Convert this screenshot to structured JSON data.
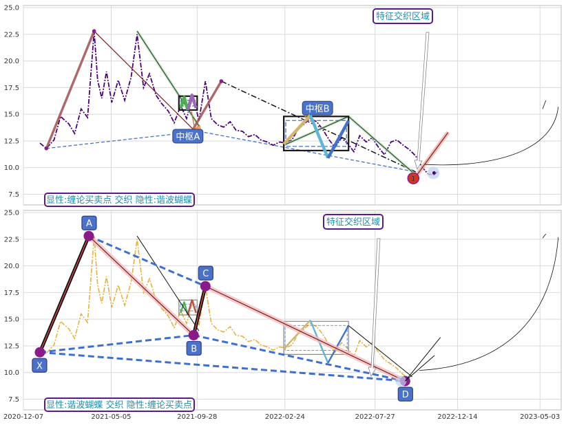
{
  "chart_data": [
    {
      "type": "line",
      "panel": "top",
      "xlim": [
        "2020-12-07",
        "2023-06-08"
      ],
      "ylim": [
        6.5,
        25.2
      ],
      "yticks": [
        "7.5",
        "10.0",
        "12.5",
        "15.0",
        "17.5",
        "20.0",
        "22.5",
        "25.0"
      ],
      "grid": true,
      "price": {
        "color": "#4b0082",
        "x": [
          "2021-01-04",
          "2021-01-15",
          "2021-01-28",
          "2021-02-08",
          "2021-02-22",
          "2021-03-04",
          "2021-03-15",
          "2021-03-26",
          "2021-04-06",
          "2021-04-12",
          "2021-04-19",
          "2021-04-27",
          "2021-05-06",
          "2021-05-17",
          "2021-05-28",
          "2021-06-08",
          "2021-06-18",
          "2021-06-29",
          "2021-07-09",
          "2021-07-20",
          "2021-07-30",
          "2021-08-10",
          "2021-08-20",
          "2021-08-31",
          "2021-09-10",
          "2021-09-21",
          "2021-10-01",
          "2021-10-12",
          "2021-10-22",
          "2021-11-02",
          "2021-11-12",
          "2021-11-23",
          "2021-12-03",
          "2021-12-14",
          "2021-12-24",
          "2022-01-04",
          "2022-01-14",
          "2022-01-25",
          "2022-02-04",
          "2022-02-15",
          "2022-02-25",
          "2022-03-08",
          "2022-03-18",
          "2022-03-29",
          "2022-04-08",
          "2022-04-19",
          "2022-04-29",
          "2022-05-10",
          "2022-05-20",
          "2022-05-31",
          "2022-06-10",
          "2022-06-21",
          "2022-07-01",
          "2022-07-12",
          "2022-07-22",
          "2022-08-02",
          "2022-08-12",
          "2022-08-23",
          "2022-09-02",
          "2022-09-13",
          "2022-09-23",
          "2022-10-04",
          "2022-10-14",
          "2022-10-25",
          "2022-11-04",
          "2022-11-10"
        ],
        "y": [
          12.3,
          11.8,
          12.6,
          14.8,
          14.1,
          13.2,
          15.5,
          14.7,
          22.8,
          18.2,
          16.5,
          19.0,
          16.1,
          18.2,
          16.3,
          18.5,
          22.5,
          17.5,
          18.8,
          16.8,
          16.0,
          15.3,
          14.2,
          15.8,
          14.6,
          16.8,
          14.4,
          18.1,
          14.6,
          14.0,
          13.8,
          14.3,
          13.5,
          13.4,
          12.9,
          13.1,
          12.6,
          12.4,
          12.1,
          12.4,
          12.3,
          12.6,
          13.6,
          14.1,
          14.6,
          14.3,
          13.6,
          12.6,
          11.9,
          12.8,
          12.3,
          11.5,
          13.0,
          12.4,
          12.8,
          11.9,
          11.2,
          12.4,
          12.6,
          12.1,
          11.7,
          11.1,
          10.1,
          9.4,
          9.3,
          9.6
        ]
      },
      "bi": {
        "x": [
          "2021-01-15",
          "2021-04-06",
          "2021-09-21",
          "2021-11-08",
          "2022-09-30",
          "2022-10-20",
          "2022-11-10"
        ],
        "y": [
          11.8,
          22.8,
          13.6,
          18.1,
          9.3,
          9.3,
          9.6
        ]
      },
      "segment_lines": [
        {
          "x": [
            "2021-04-06",
            "2021-09-21"
          ],
          "y": [
            22.8,
            13.6
          ]
        },
        {
          "x": [
            "2021-06-18",
            "2021-10-01"
          ],
          "y": [
            22.8,
            13.9
          ]
        },
        {
          "x": [
            "2021-11-08",
            "2022-10-04"
          ],
          "y": [
            18.1,
            9.6
          ]
        },
        {
          "x": [
            "2022-02-22",
            "2022-06-12"
          ],
          "y": [
            12.1,
            14.8
          ]
        },
        {
          "x": [
            "2022-06-12",
            "2022-09-28"
          ],
          "y": [
            14.8,
            9.6
          ]
        }
      ],
      "trend_lines": [
        {
          "x": [
            "2021-01-15",
            "2021-10-01"
          ],
          "y": [
            11.8,
            13.4
          ]
        },
        {
          "x": [
            "2021-10-01",
            "2022-10-04"
          ],
          "y": [
            13.4,
            9.6
          ]
        }
      ],
      "zhongshu": [
        {
          "label": "中枢A",
          "x0": "2021-08-28",
          "x1": "2021-09-28",
          "y0": 15.4,
          "y1": 16.7
        },
        {
          "label": "中枢B",
          "x0": "2022-02-22",
          "x1": "2022-06-12",
          "y0": 11.6,
          "y1": 14.8
        }
      ],
      "zigzags": [
        {
          "x": [
            "2021-08-31",
            "2021-09-06",
            "2021-09-12"
          ],
          "y": [
            15.6,
            16.6,
            15.4
          ],
          "color": "#4caf50"
        },
        {
          "x": [
            "2021-09-12",
            "2021-09-19",
            "2021-09-26"
          ],
          "y": [
            15.4,
            16.8,
            15.6
          ],
          "color": "#9c6bb3"
        },
        {
          "x": [
            "2022-02-22",
            "2022-04-08"
          ],
          "y": [
            12.2,
            14.9
          ],
          "color": "#d2b46e"
        },
        {
          "x": [
            "2022-04-08",
            "2022-05-08"
          ],
          "y": [
            14.9,
            10.9
          ],
          "color": "#5fb6d9"
        },
        {
          "x": [
            "2022-05-08",
            "2022-06-12"
          ],
          "y": [
            10.9,
            14.4
          ],
          "color": "#4472c4"
        }
      ],
      "signal_label": "1",
      "texts": {
        "feature_region": "特征交织区域",
        "legend_box": "显性:缠论买卖点 交织 隐性:谐波蝴蝶"
      }
    },
    {
      "type": "line",
      "panel": "bottom",
      "xlim": [
        "2020-12-07",
        "2023-06-08"
      ],
      "ylim": [
        6.5,
        25.2
      ],
      "xticks": [
        "2020-12-07",
        "2021-05-05",
        "2021-09-28",
        "2022-02-24",
        "2022-07-27",
        "2022-12-14",
        "2023-05-03"
      ],
      "yticks": [
        "7.5",
        "10.0",
        "12.5",
        "15.0",
        "17.5",
        "20.0",
        "22.5",
        "25.0"
      ],
      "grid": true,
      "price": {
        "color": "#e8b23a",
        "x": [
          "2021-01-04",
          "2021-01-15",
          "2021-01-28",
          "2021-02-08",
          "2021-02-22",
          "2021-03-04",
          "2021-03-15",
          "2021-03-26",
          "2021-04-06",
          "2021-04-12",
          "2021-04-19",
          "2021-04-27",
          "2021-05-06",
          "2021-05-17",
          "2021-05-28",
          "2021-06-08",
          "2021-06-18",
          "2021-06-29",
          "2021-07-09",
          "2021-07-20",
          "2021-07-30",
          "2021-08-10",
          "2021-08-20",
          "2021-08-31",
          "2021-09-10",
          "2021-09-21",
          "2021-10-01",
          "2021-10-12",
          "2021-10-22",
          "2021-11-02",
          "2021-11-12",
          "2021-11-23",
          "2021-12-03",
          "2021-12-14",
          "2021-12-24",
          "2022-01-04",
          "2022-01-14",
          "2022-01-25",
          "2022-02-04",
          "2022-02-15",
          "2022-02-25",
          "2022-03-08",
          "2022-03-18",
          "2022-03-29",
          "2022-04-08",
          "2022-04-19",
          "2022-04-29",
          "2022-05-10",
          "2022-05-20",
          "2022-05-31",
          "2022-06-10",
          "2022-06-21",
          "2022-07-01",
          "2022-07-12",
          "2022-07-22",
          "2022-08-02",
          "2022-08-12",
          "2022-08-23",
          "2022-09-02",
          "2022-09-13",
          "2022-09-23"
        ],
        "y": [
          12.3,
          11.8,
          12.6,
          14.8,
          14.1,
          13.2,
          15.5,
          14.7,
          22.8,
          18.2,
          16.5,
          19.0,
          16.1,
          18.2,
          16.3,
          18.5,
          22.5,
          17.5,
          18.8,
          16.8,
          16.0,
          15.3,
          14.2,
          15.8,
          14.6,
          16.8,
          14.4,
          18.1,
          14.6,
          14.0,
          13.8,
          14.3,
          13.5,
          13.4,
          12.9,
          13.1,
          12.6,
          12.4,
          12.1,
          12.4,
          12.3,
          12.6,
          13.6,
          14.1,
          14.6,
          14.3,
          13.6,
          12.6,
          11.9,
          12.8,
          12.3,
          11.5,
          13.0,
          12.4,
          12.8,
          11.9,
          11.2,
          10.8,
          10.4,
          9.8,
          9.3
        ]
      },
      "xabcd": [
        {
          "label": "X",
          "x": "2021-01-04",
          "y": 11.9
        },
        {
          "label": "A",
          "x": "2021-03-28",
          "y": 22.8
        },
        {
          "label": "B",
          "x": "2021-09-22",
          "y": 13.5
        },
        {
          "label": "C",
          "x": "2021-10-12",
          "y": 18.1
        },
        {
          "label": "D",
          "x": "2022-09-16",
          "y": 9.2
        }
      ],
      "segment_lines": [
        {
          "x": [
            "2021-06-18",
            "2021-10-01"
          ],
          "y": [
            22.8,
            13.9
          ]
        },
        {
          "x": [
            "2022-06-12",
            "2022-09-28"
          ],
          "y": [
            14.4,
            9.6
          ]
        }
      ],
      "zhongshu": [
        {
          "x0": "2021-08-28",
          "x1": "2021-09-28",
          "y0": 15.4,
          "y1": 16.8
        },
        {
          "x0": "2022-02-22",
          "x1": "2022-06-12",
          "y0": 11.7,
          "y1": 14.8
        }
      ],
      "zigzags": [
        {
          "x": [
            "2021-08-31",
            "2021-09-06",
            "2021-09-12"
          ],
          "y": [
            15.6,
            16.6,
            15.4
          ],
          "color": "#4caf50"
        },
        {
          "x": [
            "2021-09-12",
            "2021-09-19",
            "2021-09-26"
          ],
          "y": [
            15.4,
            16.8,
            15.6
          ],
          "color": "#c0504d"
        },
        {
          "x": [
            "2022-02-22",
            "2022-04-08"
          ],
          "y": [
            12.2,
            14.9
          ],
          "color": "#d2b46e"
        },
        {
          "x": [
            "2022-04-08",
            "2022-05-08"
          ],
          "y": [
            14.9,
            10.9
          ],
          "color": "#5fb6d9"
        },
        {
          "x": [
            "2022-05-08",
            "2022-06-12"
          ],
          "y": [
            10.9,
            14.4
          ],
          "color": "#4472c4"
        }
      ],
      "texts": {
        "feature_region": "特征交织区域",
        "legend_box": "显性:谐波蝴蝶 交织 隐性:缠论买卖点"
      }
    }
  ]
}
